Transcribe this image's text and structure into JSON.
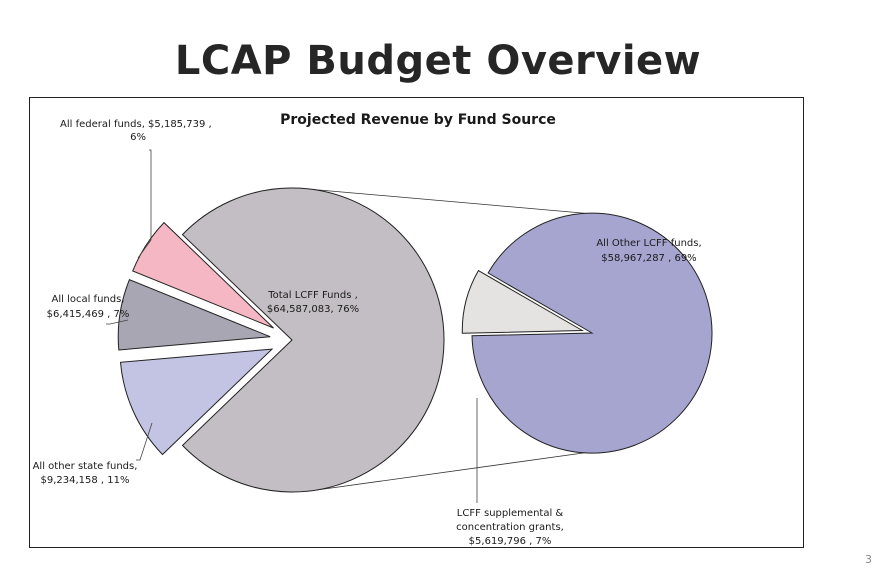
{
  "slide": {
    "title": "LCAP Budget Overview",
    "page_number": "3"
  },
  "chart_data": {
    "type": "pie",
    "subtype": "pie-of-pie",
    "title": "Projected Revenue by Fund Source",
    "main_pie": {
      "slices": [
        {
          "name": "Total LCFF Funds",
          "value": 64587083,
          "value_label": "$64,587,083",
          "percent": 76,
          "color": "#c3bec3",
          "exploded": false
        },
        {
          "name": "All other state funds",
          "value": 9234158,
          "value_label": "$9,234,158",
          "percent": 11,
          "color": "#c3c3e3",
          "exploded": true
        },
        {
          "name": "All local funds",
          "value": 6415469,
          "value_label": "$6,415,469",
          "percent": 7,
          "color": "#a9a6b3",
          "exploded": true
        },
        {
          "name": "All federal funds",
          "value": 5185739,
          "value_label": "$5,185,739",
          "percent": 6,
          "color": "#f5b7c3",
          "exploded": true
        }
      ]
    },
    "secondary_pie": {
      "slices": [
        {
          "name": "All Other LCFF funds",
          "value": 58967287,
          "value_label": "$58,967,287",
          "percent": 69,
          "color": "#a6a5d0",
          "exploded": false
        },
        {
          "name": "LCFF supplemental & concentration grants",
          "value": 5619796,
          "value_label": "$5,619,796",
          "percent": 7,
          "color": "#e5e3e2",
          "exploded": true
        }
      ]
    },
    "labels": {
      "federal_line1": "All federal funds,  $5,185,739 ,",
      "federal_line2": "6%",
      "local_line1": "All local funds,",
      "local_line2": "$6,415,469 , 7%",
      "state_line1": "All other state funds,",
      "state_line2": "$9,234,158 , 11%",
      "lcff_line1": "Total LCFF Funds ,",
      "lcff_line2": "$64,587,083, 76%",
      "other_lcff_line1": "All Other LCFF funds,",
      "other_lcff_line2": "$58,967,287 , 69%",
      "supp_line1": "LCFF supplemental &",
      "supp_line2": "concentration grants,",
      "supp_line3": "$5,619,796 , 7%"
    },
    "legend": "none"
  }
}
